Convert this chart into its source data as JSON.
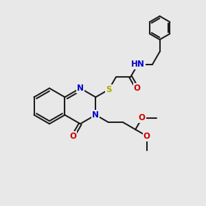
{
  "bg": "#e8e8e8",
  "bond_color": "#1a1a1a",
  "atom_colors": {
    "N": "#0000cc",
    "O": "#cc0000",
    "S": "#aaaa00",
    "H": "#4a9090",
    "C": "#1a1a1a"
  },
  "fs": 8.5,
  "lw": 1.5,
  "figsize": [
    3.0,
    3.0
  ],
  "dpi": 100,
  "xlim": [
    0,
    10
  ],
  "ylim": [
    0,
    10
  ]
}
